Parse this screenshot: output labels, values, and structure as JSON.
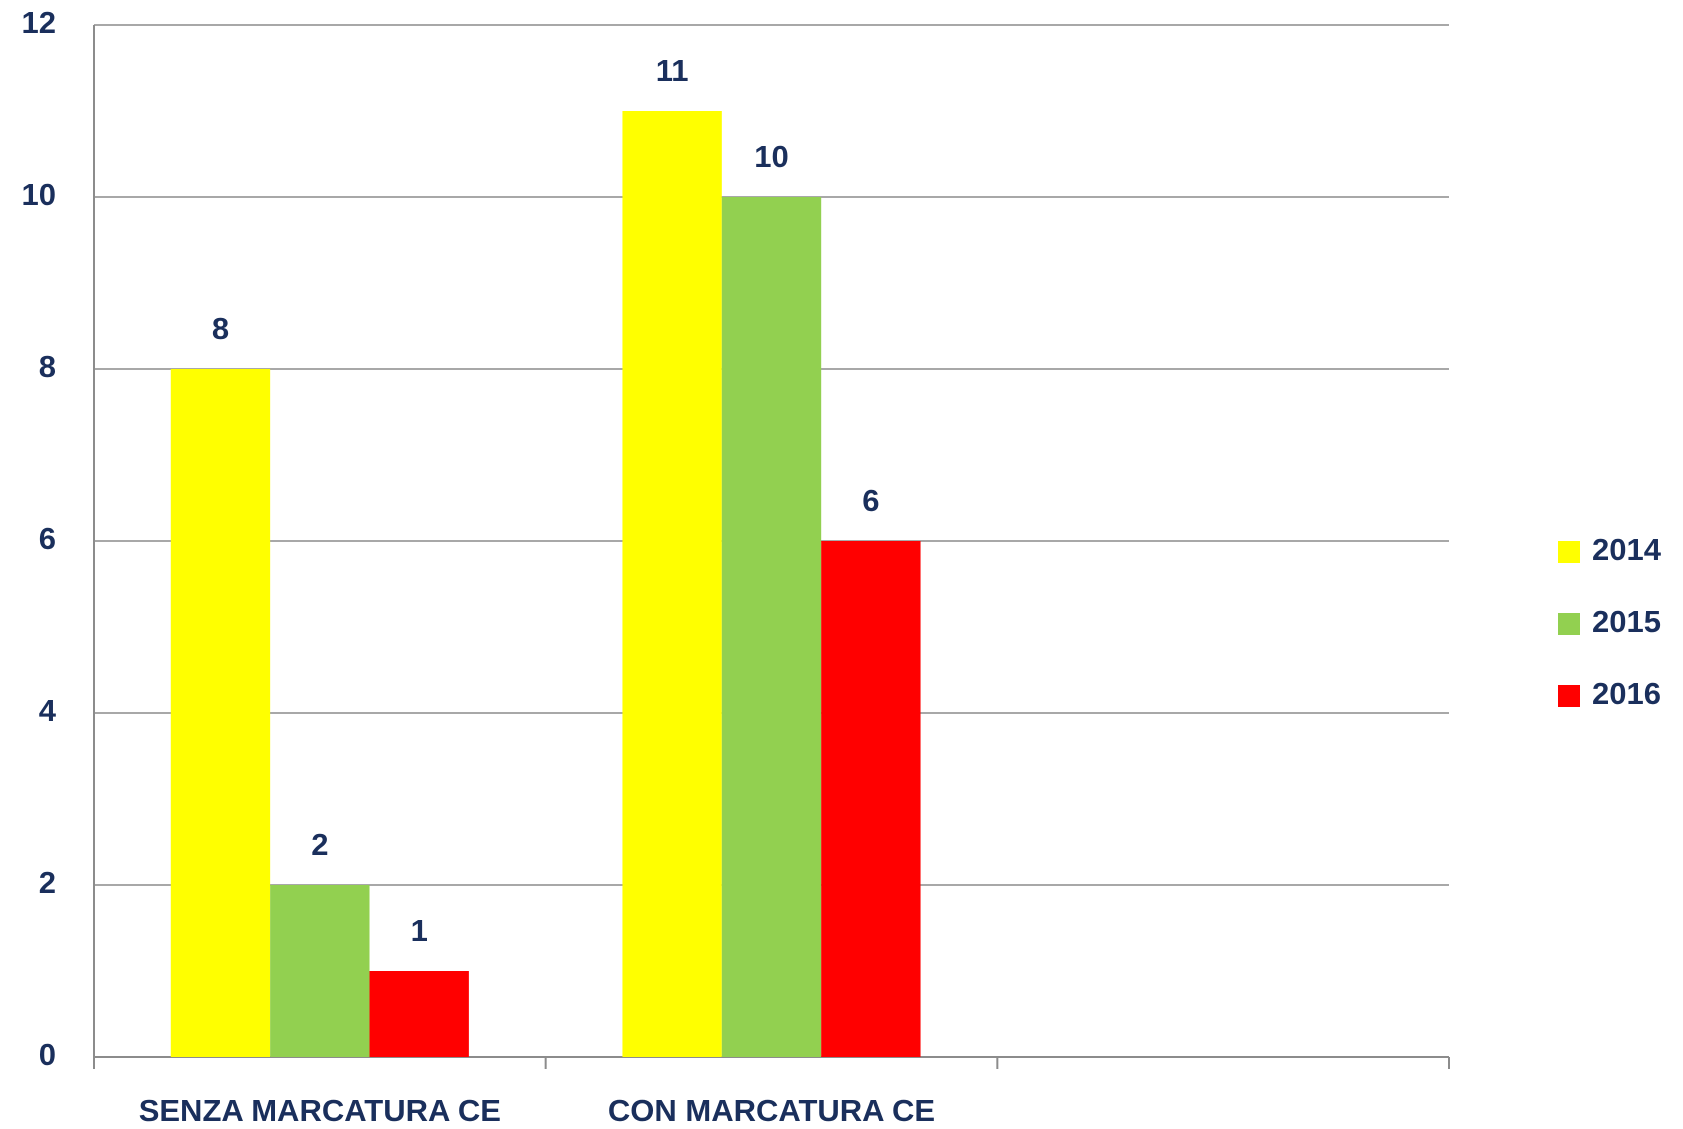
{
  "chart_data": {
    "type": "bar",
    "categories": [
      "SENZA MARCATURA CE",
      "CON MARCATURA CE",
      null
    ],
    "series": [
      {
        "name": "2014",
        "color": "#ffff00",
        "values": [
          8,
          11,
          null
        ]
      },
      {
        "name": "2015",
        "color": "#92d050",
        "values": [
          2,
          10,
          null
        ]
      },
      {
        "name": "2016",
        "color": "#ff0000",
        "values": [
          1,
          6,
          null
        ]
      }
    ],
    "ylim": [
      0,
      12
    ],
    "yticks": [
      0,
      2,
      4,
      6,
      8,
      10,
      12
    ],
    "grid": true,
    "legend": "right"
  }
}
